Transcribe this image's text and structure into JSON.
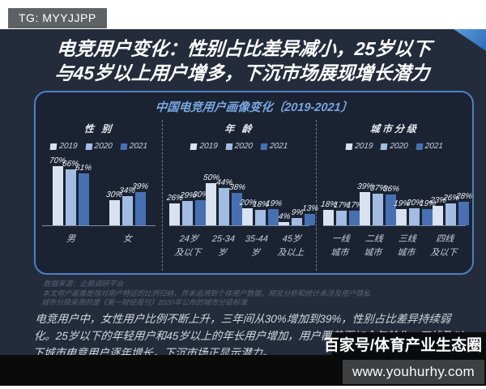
{
  "badge": {
    "label": "TG: MYYJJPP"
  },
  "title": {
    "line1": "电竞用户变化：性别占比差异减小，25岁以下",
    "line2": "与45岁以上用户增多，下沉市场展现增长潜力"
  },
  "panel": {
    "title": "中国电竞用户画像变化〔2019-2021〕"
  },
  "legend": {
    "years": [
      "2019",
      "2020",
      "2021"
    ],
    "colors": [
      "#d9e2f1",
      "#a2bce4",
      "#4670b2"
    ]
  },
  "chart_data": {
    "type": "bar",
    "title": "中国电竞用户画像变化〔2019-2021〕",
    "unit": "%",
    "series_names": [
      "2019",
      "2020",
      "2021"
    ],
    "grid": false,
    "ylim": [
      0,
      80
    ],
    "legend_position": "top-of-each-section",
    "sections": [
      {
        "id": "gender",
        "label": "性 别",
        "groups": [
          {
            "category": [
              "男"
            ],
            "values": [
              70,
              66,
              61
            ]
          },
          {
            "category": [
              "女"
            ],
            "values": [
              30,
              34,
              39
            ]
          }
        ]
      },
      {
        "id": "age",
        "label": "年 龄",
        "groups": [
          {
            "category": [
              "24岁",
              "及以下"
            ],
            "values": [
              26,
              29,
              30
            ]
          },
          {
            "category": [
              "25-34",
              "岁"
            ],
            "values": [
              50,
              44,
              38
            ]
          },
          {
            "category": [
              "35-44",
              "岁"
            ],
            "values": [
              20,
              18,
              19
            ]
          },
          {
            "category": [
              "45岁",
              "及以上"
            ],
            "values": [
              4,
              9,
              13
            ]
          }
        ]
      },
      {
        "id": "city-tier",
        "label": "城市分级",
        "groups": [
          {
            "category": [
              "一线",
              "城市"
            ],
            "values": [
              18,
              17,
              17
            ]
          },
          {
            "category": [
              "二线",
              "城市"
            ],
            "values": [
              39,
              37,
              36
            ]
          },
          {
            "category": [
              "三线",
              "城市"
            ],
            "values": [
              19,
              20,
              19
            ]
          },
          {
            "category": [
              "四线",
              "及以下"
            ],
            "values": [
              23,
              26,
              28
            ]
          }
        ]
      }
    ]
  },
  "source": {
    "line1": "数据来源：企鹅调研平台",
    "line2": "本文用户画像是指对用户特征的比例归纳，并未追溯到个体用户数据，相关分析和统计未涉及用户隐私",
    "line3": "城市分级采用的是《第一财经周刊》2020年公布的城市分级标准"
  },
  "body": {
    "paragraph": "电竞用户中，女性用户比例不断上升，三年间从30%增加到39%，性别占比差异持续弱化。25岁以下的年轻用户和45岁以上的年长用户增加，用户覆盖更加全年龄化。四线及以下城市电竞用户逐年增长，下沉市场正显示潜力。"
  },
  "watermark": {
    "label": "百家号/体育产业生态圈"
  },
  "footer": {
    "url": "www.youhurhy.com"
  },
  "colors": {
    "page_bg": "#ffffff",
    "card_bg": "#242c3b",
    "panel_bg": "#1b2332",
    "panel_border": "#4a81c4",
    "panel_title": "#79a7e1",
    "accent_triangle": "#2f72bf",
    "bottom_band": "#0a0a0a",
    "url_box_bg": "#3e3f41"
  }
}
